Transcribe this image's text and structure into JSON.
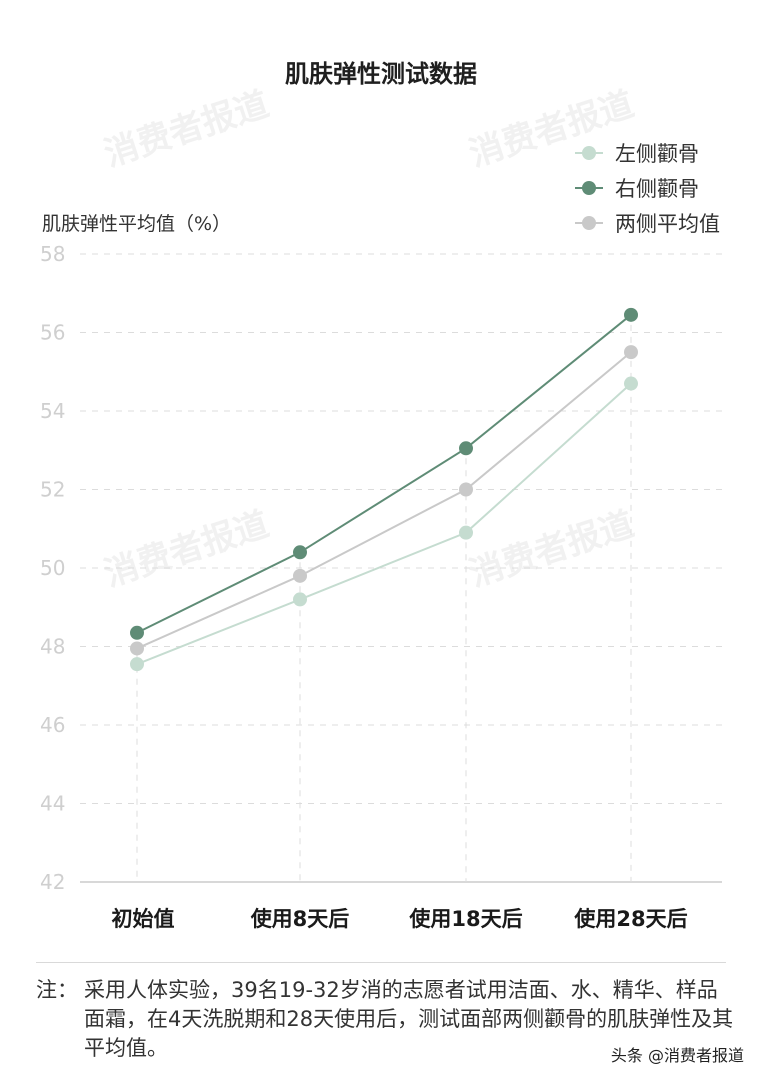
{
  "chart_data": {
    "type": "line",
    "title": "肌肤弹性测试数据",
    "ylabel": "肌肤弹性平均值（%）",
    "xlabel": "",
    "categories": [
      "初始值",
      "使用8天后",
      "使用18天后",
      "使用28天后"
    ],
    "ylim": [
      42,
      58
    ],
    "yticks": [
      42,
      44,
      46,
      48,
      50,
      52,
      54,
      56,
      58
    ],
    "grid": true,
    "legend_position": "top-right",
    "series": [
      {
        "name": "左侧颧骨",
        "color": "#c5dcd0",
        "values": [
          47.55,
          49.2,
          50.9,
          54.7
        ]
      },
      {
        "name": "右侧颧骨",
        "color": "#5f8c76",
        "values": [
          48.35,
          50.4,
          53.05,
          56.45
        ]
      },
      {
        "name": "两侧平均值",
        "color": "#c9c9c9",
        "values": [
          47.95,
          49.8,
          52.0,
          55.5
        ]
      }
    ]
  },
  "watermark": "消费者报道",
  "note": {
    "label": "注：",
    "text": "采用人体实验，39名19-32岁消的志愿者试用洁面、水、精华、样品面霜，在4天洗脱期和28天使用后，测试面部两侧颧骨的肌肤弹性及其平均值。"
  },
  "credit": "头条 @消费者报道"
}
